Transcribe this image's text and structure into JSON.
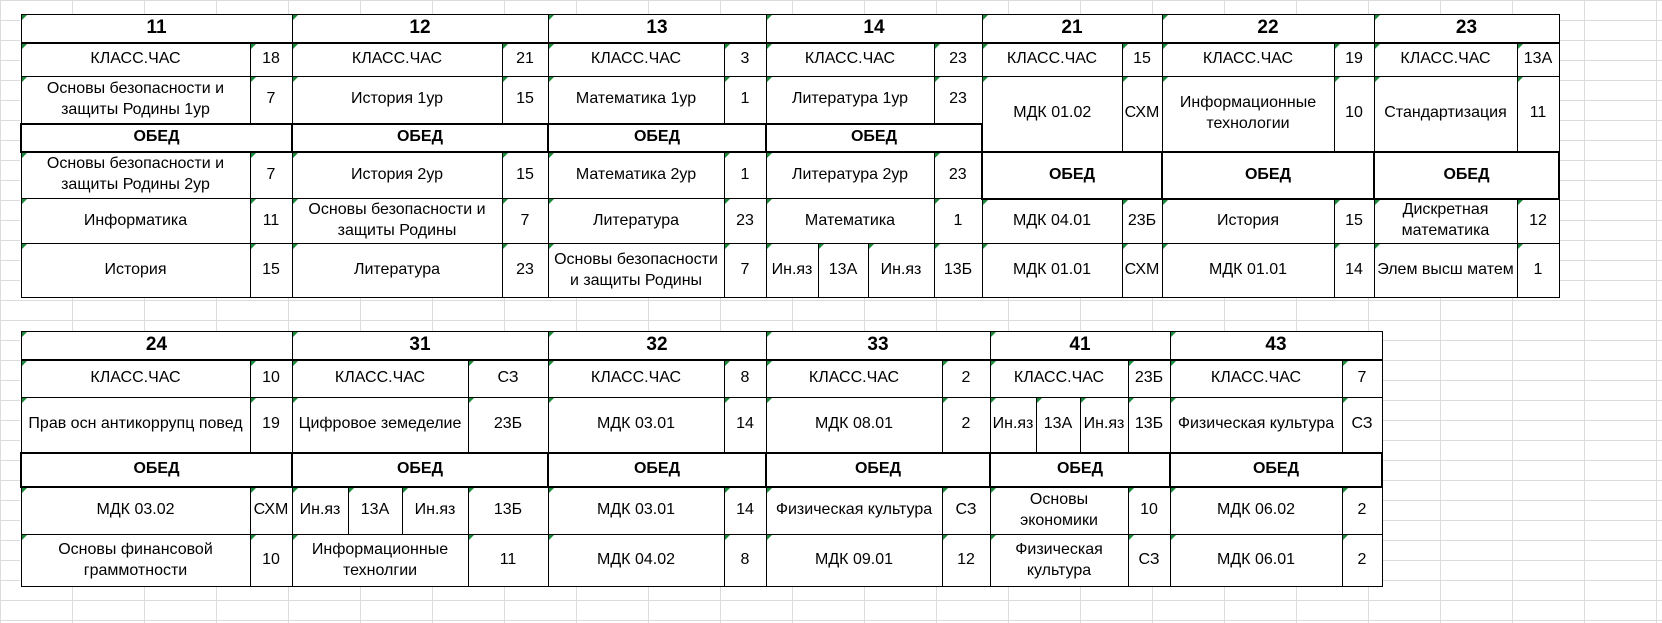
{
  "block1": {
    "headers": [
      "11",
      "12",
      "13",
      "14",
      "21",
      "22",
      "23"
    ],
    "rows": [
      [
        [
          "КЛАСС.ЧАС",
          "18"
        ],
        [
          "КЛАСС.ЧАС",
          "21"
        ],
        [
          "КЛАСС.ЧАС",
          "3"
        ],
        [
          "КЛАСС.ЧАС",
          "23"
        ],
        [
          "КЛАСС.ЧАС",
          "15"
        ],
        [
          "КЛАСС.ЧАС",
          "19"
        ],
        [
          "КЛАСС.ЧАС",
          "13А"
        ]
      ],
      [
        [
          "Основы безопасности и защиты Родины 1ур",
          "7"
        ],
        [
          "История 1ур",
          "15"
        ],
        [
          "Математика 1ур",
          "1"
        ],
        [
          "Литература 1ур",
          "23"
        ],
        [
          "МДК 01.02",
          "СХМ"
        ],
        [
          "Информационные технологии",
          "10"
        ],
        [
          "Стандартизация",
          "11"
        ]
      ],
      [
        [
          "Основы безопасности и защиты Родины 2ур",
          "7"
        ],
        [
          "История 2ур",
          "15"
        ],
        [
          "Математика 2ур",
          "1"
        ],
        [
          "Литература 2ур",
          "23"
        ]
      ],
      [
        [
          "Информатика",
          "11"
        ],
        [
          "Основы безопасности и защиты Родины",
          "7"
        ],
        [
          "Литература",
          "23"
        ],
        [
          "Математика",
          "1"
        ],
        [
          "МДК 04.01",
          "23Б"
        ],
        [
          "История",
          "15"
        ],
        [
          "Дискретная математика",
          "12"
        ]
      ],
      [
        [
          "История",
          "15"
        ],
        [
          "Литература",
          "23"
        ],
        [
          "Основы безопасности и защиты Родины",
          "7"
        ],
        [
          "Ин.яз",
          "13А",
          "Ин.яз",
          "13Б"
        ],
        [
          "МДК 01.01",
          "СХМ"
        ],
        [
          "МДК 01.01",
          "14"
        ],
        [
          "Элем высш матем",
          "1"
        ]
      ]
    ],
    "lunch": "ОБЕД"
  },
  "block2": {
    "headers": [
      "24",
      "31",
      "32",
      "33",
      "41",
      "43"
    ],
    "rows": [
      [
        [
          "КЛАСС.ЧАС",
          "10"
        ],
        [
          "КЛАСС.ЧАС",
          "СЗ"
        ],
        [
          "КЛАСС.ЧАС",
          "8"
        ],
        [
          "КЛАСС.ЧАС",
          "2"
        ],
        [
          "КЛАСС.ЧАС",
          "23Б"
        ],
        [
          "КЛАСС.ЧАС",
          "7"
        ]
      ],
      [
        [
          "Прав осн антикоррупц повед",
          "19"
        ],
        [
          "Цифровое земеделие",
          "23Б"
        ],
        [
          "МДК 03.01",
          "14"
        ],
        [
          "МДК 08.01",
          "2"
        ],
        [
          "Ин.яз",
          "13А",
          "Ин.яз",
          "13Б"
        ],
        [
          "Физическая культура",
          "СЗ"
        ]
      ],
      [
        [
          "МДК 03.02",
          "СХМ"
        ],
        [
          "Ин.яз",
          "13А",
          "Ин.яз",
          "13Б"
        ],
        [
          "МДК 03.01",
          "14"
        ],
        [
          "Физическая культура",
          "СЗ"
        ],
        [
          "Основы экономики",
          "10"
        ],
        [
          "МДК 06.02",
          "2"
        ]
      ],
      [
        [
          "Основы финансовой граммотности",
          "10"
        ],
        [
          "Информационные технолгии",
          "11"
        ],
        [
          "МДК 04.02",
          "8"
        ],
        [
          "МДК 09.01",
          "12"
        ],
        [
          "Физическая культура",
          "СЗ"
        ],
        [
          "МДК 06.01",
          "2"
        ]
      ]
    ],
    "lunch": "ОБЕД"
  }
}
